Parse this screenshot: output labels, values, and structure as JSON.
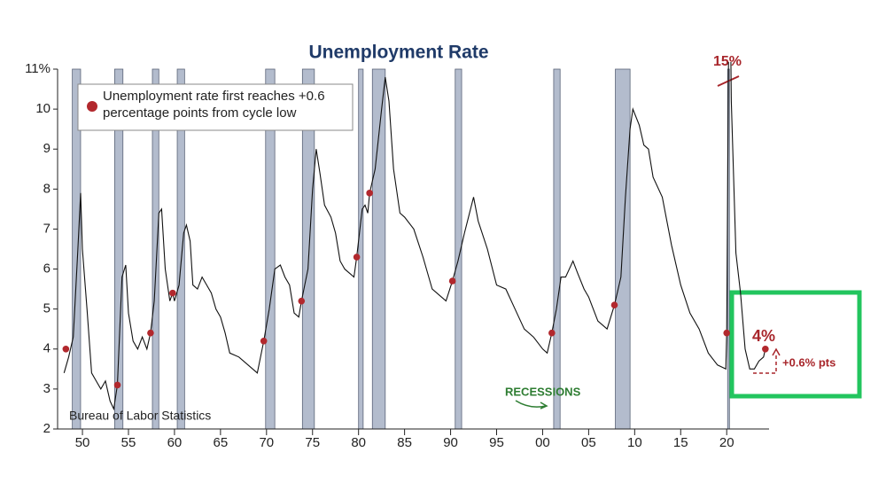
{
  "chart_data": {
    "type": "line",
    "title": "Unemployment Rate",
    "source": "Bureau of Labor Statistics",
    "color": "#111111",
    "xlim": [
      1947.3,
      2024.6
    ],
    "ylim": [
      2,
      11
    ],
    "xticks": [
      {
        "value": 1950,
        "label": "50"
      },
      {
        "value": 1955,
        "label": "55"
      },
      {
        "value": 1960,
        "label": "60"
      },
      {
        "value": 1965,
        "label": "65"
      },
      {
        "value": 1970,
        "label": "70"
      },
      {
        "value": 1975,
        "label": "75"
      },
      {
        "value": 1980,
        "label": "80"
      },
      {
        "value": 1985,
        "label": "85"
      },
      {
        "value": 1990,
        "label": "90"
      },
      {
        "value": 1995,
        "label": "95"
      },
      {
        "value": 2000,
        "label": "00"
      },
      {
        "value": 2005,
        "label": "05"
      },
      {
        "value": 2010,
        "label": "10"
      },
      {
        "value": 2015,
        "label": "15"
      },
      {
        "value": 2020,
        "label": "20"
      }
    ],
    "yticks": [
      2,
      3,
      4,
      5,
      6,
      7,
      8,
      9,
      10,
      {
        "value": 11,
        "label": "11%"
      }
    ],
    "x": [
      1948.0,
      1948.5,
      1949.0,
      1949.5,
      1949.8,
      1950.0,
      1950.5,
      1951.0,
      1951.5,
      1952.0,
      1952.5,
      1953.0,
      1953.4,
      1953.8,
      1954.3,
      1954.7,
      1955.0,
      1955.5,
      1956.0,
      1956.5,
      1957.0,
      1957.4,
      1957.8,
      1958.3,
      1958.6,
      1959.0,
      1959.5,
      1959.8,
      1960.0,
      1960.5,
      1961.0,
      1961.3,
      1961.7,
      1962.0,
      1962.5,
      1963.0,
      1963.5,
      1964.0,
      1964.5,
      1965.0,
      1965.5,
      1966.0,
      1967.0,
      1968.0,
      1968.5,
      1969.0,
      1969.7,
      1970.3,
      1970.9,
      1971.5,
      1972.0,
      1972.5,
      1973.0,
      1973.5,
      1973.8,
      1974.5,
      1975.0,
      1975.4,
      1975.8,
      1976.3,
      1977.0,
      1977.5,
      1978.0,
      1978.5,
      1979.0,
      1979.5,
      1979.8,
      1980.4,
      1980.7,
      1981.0,
      1981.2,
      1981.8,
      1982.5,
      1982.9,
      1983.3,
      1983.8,
      1984.5,
      1985.0,
      1986.0,
      1987.0,
      1988.0,
      1989.0,
      1989.5,
      1990.2,
      1990.8,
      1991.5,
      1992.5,
      1993.0,
      1994.0,
      1995.0,
      1996.0,
      1997.0,
      1998.0,
      1999.0,
      2000.0,
      2000.5,
      2001.0,
      2001.5,
      2002.0,
      2002.5,
      2003.3,
      2003.8,
      2004.5,
      2005.0,
      2005.5,
      2006.0,
      2006.5,
      2007.0,
      2007.8,
      2008.5,
      2009.0,
      2009.5,
      2009.8,
      2010.5,
      2011.0,
      2011.5,
      2012.0,
      2013.0,
      2014.0,
      2015.0,
      2016.0,
      2017.0,
      2018.0,
      2019.0,
      2019.9,
      2020.0,
      2020.3,
      2020.5,
      2021.0,
      2021.5,
      2022.0,
      2022.5,
      2023.0,
      2023.5,
      2024.0,
      2024.2
    ],
    "values": [
      3.4,
      3.8,
      4.3,
      6.5,
      7.9,
      6.5,
      5.0,
      3.4,
      3.2,
      3.0,
      3.2,
      2.7,
      2.5,
      3.1,
      5.8,
      6.1,
      4.9,
      4.2,
      4.0,
      4.3,
      4.0,
      4.4,
      5.2,
      7.4,
      7.5,
      6.0,
      5.2,
      5.4,
      5.2,
      5.6,
      6.9,
      7.1,
      6.7,
      5.6,
      5.5,
      5.8,
      5.6,
      5.4,
      5.0,
      4.8,
      4.4,
      3.9,
      3.8,
      3.6,
      3.5,
      3.4,
      4.2,
      5.0,
      6.0,
      6.1,
      5.8,
      5.6,
      4.9,
      4.8,
      5.2,
      6.0,
      8.0,
      9.0,
      8.4,
      7.6,
      7.3,
      6.9,
      6.2,
      6.0,
      5.9,
      5.8,
      6.3,
      7.5,
      7.6,
      7.4,
      7.9,
      8.5,
      10.0,
      10.8,
      10.2,
      8.5,
      7.4,
      7.3,
      7.0,
      6.3,
      5.5,
      5.3,
      5.2,
      5.7,
      6.2,
      6.9,
      7.8,
      7.2,
      6.5,
      5.6,
      5.5,
      5.0,
      4.5,
      4.3,
      4.0,
      3.9,
      4.4,
      5.0,
      5.8,
      5.8,
      6.2,
      5.9,
      5.5,
      5.3,
      5.0,
      4.7,
      4.6,
      4.5,
      5.1,
      5.8,
      7.8,
      9.5,
      10.0,
      9.6,
      9.1,
      9.0,
      8.3,
      7.8,
      6.6,
      5.6,
      4.9,
      4.5,
      3.9,
      3.6,
      3.5,
      4.4,
      14.7,
      10.2,
      6.4,
      5.4,
      4.0,
      3.5,
      3.5,
      3.7,
      3.8,
      4.0
    ],
    "dots": {
      "name": "Unemployment rate first reaches +0.6 percentage points from cycle low",
      "color": "#b2282d",
      "x": [
        1948.2,
        1953.8,
        1957.4,
        1959.8,
        1969.7,
        1973.8,
        1979.8,
        1981.2,
        1990.2,
        2001.0,
        2007.8,
        2020.0,
        2024.2
      ],
      "values": [
        4.0,
        3.1,
        4.4,
        5.4,
        4.2,
        5.2,
        6.3,
        7.9,
        5.7,
        4.4,
        5.1,
        4.4,
        4.0
      ]
    },
    "recessions": [
      [
        1948.9,
        1949.8
      ],
      [
        1953.5,
        1954.4
      ],
      [
        1957.6,
        1958.3
      ],
      [
        1960.3,
        1961.1
      ],
      [
        1969.9,
        1970.9
      ],
      [
        1973.9,
        1975.2
      ],
      [
        1980.0,
        1980.5
      ],
      [
        1981.5,
        1982.9
      ],
      [
        1990.5,
        1991.2
      ],
      [
        2001.2,
        2001.9
      ],
      [
        2007.9,
        2009.5
      ],
      [
        2020.1,
        2020.3
      ]
    ],
    "recessions_label": "RECESSIONS",
    "annotations": [
      "15%",
      "4%",
      "+0.6% pts"
    ]
  }
}
